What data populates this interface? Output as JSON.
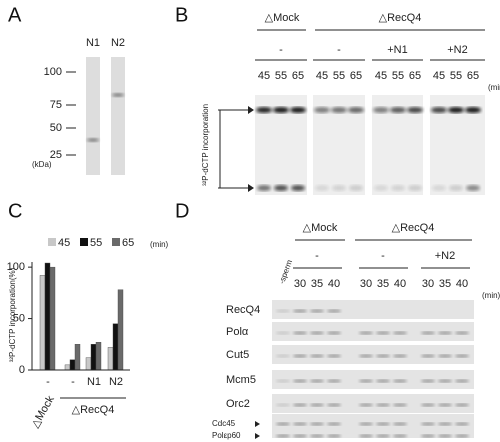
{
  "panel_a": {
    "label": "A",
    "lanes": [
      "N1",
      "N2"
    ],
    "markers": [
      "100",
      "75",
      "50",
      "25"
    ],
    "unit": "(kDa)"
  },
  "panel_b": {
    "label": "B",
    "groups": [
      "△Mock",
      "△RecQ4"
    ],
    "conditions": [
      "-",
      "-",
      "+N1",
      "+N2"
    ],
    "times": [
      "45",
      "55",
      "65"
    ],
    "time_unit": "(min)",
    "y_label": "³²P-dCTP incorporation"
  },
  "chart_data": {
    "type": "bar",
    "label": "C",
    "categories": [
      "-",
      "-",
      "N1",
      "N2"
    ],
    "groups": [
      "△Mock",
      "△RecQ4"
    ],
    "series": [
      {
        "name": "45",
        "color": "#c8c8c8",
        "values": [
          92,
          5,
          12,
          22
        ]
      },
      {
        "name": "55",
        "color": "#111111",
        "values": [
          104,
          10,
          25,
          45
        ]
      },
      {
        "name": "65",
        "color": "#6a6a6a",
        "values": [
          100,
          25,
          27,
          78
        ]
      }
    ],
    "legend_unit": "(min)",
    "y_label": "³²P-dCTP incorporation(%)",
    "ylim": [
      0,
      105
    ],
    "yticks": [
      0,
      50,
      100
    ]
  },
  "panel_d": {
    "label": "D",
    "groups": [
      "△Mock",
      "△RecQ4"
    ],
    "conditions": [
      "-",
      "-",
      "+N2"
    ],
    "sperm": "-sperm",
    "times": [
      "30",
      "35",
      "40"
    ],
    "time_unit": "(min)",
    "rows": [
      "RecQ4",
      "Polα",
      "Cut5",
      "Mcm5",
      "Orc2",
      "Cdc45",
      "Polεp60"
    ]
  }
}
